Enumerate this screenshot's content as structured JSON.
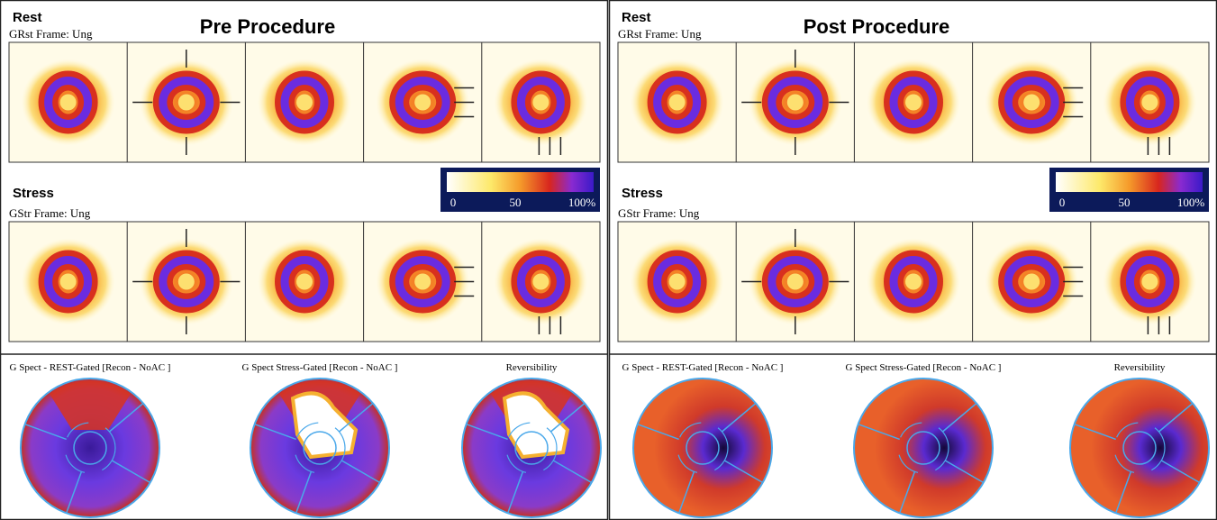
{
  "panels": [
    {
      "title": "Pre Procedure",
      "rest": {
        "label": "Rest",
        "info": "GRst   Frame: Ung"
      },
      "stress": {
        "label": "Stress",
        "info": "GStr   Frame: Ung"
      },
      "colorbar": [
        "0",
        "50",
        "100%"
      ],
      "polar_maps": [
        "G Spect - REST-Gated [Recon - NoAC ]",
        "G Spect Stress-Gated [Recon - NoAC ]",
        "Reversibility"
      ]
    },
    {
      "title": "Post Procedure",
      "rest": {
        "label": "Rest",
        "info": "GRst   Frame: Ung"
      },
      "stress": {
        "label": "Stress",
        "info": "GStr   Frame: Ung"
      },
      "colorbar": [
        "0",
        "50",
        "100%"
      ],
      "polar_maps": [
        "G Spect - REST-Gated [Recon - NoAC ]",
        "G Spect Stress-Gated [Recon - NoAC ]",
        "Reversibility"
      ]
    }
  ]
}
